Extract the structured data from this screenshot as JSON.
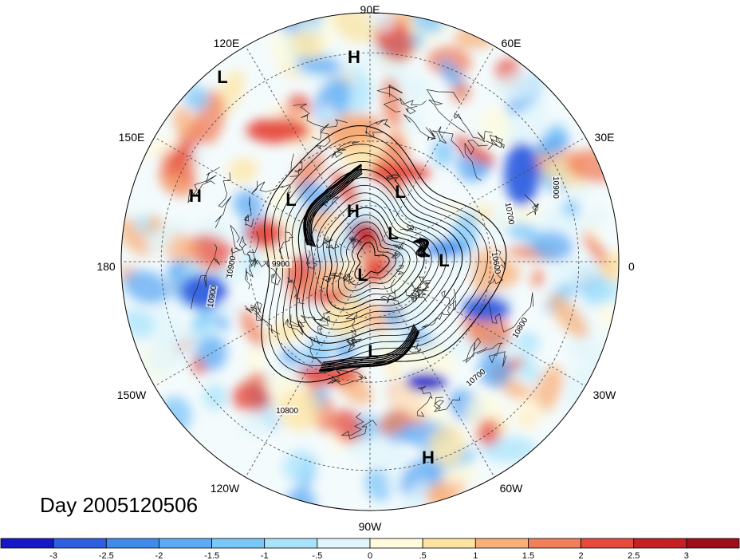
{
  "title": "Day 2005120506",
  "longitude_labels": [
    "90E",
    "60E",
    "30E",
    "0",
    "30W",
    "60W",
    "90W",
    "120W",
    "150W",
    "180",
    "150E",
    "120E"
  ],
  "pressure_centers": [
    {
      "type": "H",
      "lon": 90,
      "lat": 32
    },
    {
      "type": "L",
      "lon": 118,
      "lat": 22
    },
    {
      "type": "H",
      "lon": 168,
      "lat": 34
    },
    {
      "type": "L",
      "lon": 150,
      "lat": 68
    },
    {
      "type": "H",
      "lon": 105,
      "lat": 72
    },
    {
      "type": "L",
      "lon": 75,
      "lat": 70
    },
    {
      "type": "L",
      "lon": 70,
      "lat": 78
    },
    {
      "type": "L",
      "lon": 10,
      "lat": 62
    },
    {
      "type": "L",
      "lon": 180,
      "lat": 88
    },
    {
      "type": "L",
      "lon": -80,
      "lat": 72
    },
    {
      "type": "H",
      "lon": -70,
      "lat": 15
    }
  ],
  "contour_labels": [
    "10900",
    "10900",
    "9900",
    "10700",
    "10600",
    "10900",
    "10800",
    "10700",
    "10800"
  ],
  "colorbar": {
    "ticks": [
      "-3",
      "-2.5",
      "-2",
      "-1.5",
      "-1",
      "-.5",
      "0",
      ".5",
      "1",
      "1.5",
      "2",
      "2.5",
      "3"
    ],
    "colors": [
      "#1717c8",
      "#2e5fe0",
      "#3f8bec",
      "#5eaaf4",
      "#79c6f9",
      "#a9e3fb",
      "#e0f6fb",
      "#fffbdc",
      "#fde4a3",
      "#f8b079",
      "#f07f5a",
      "#e64a3c",
      "#c81f25",
      "#9e0d1a"
    ]
  }
}
